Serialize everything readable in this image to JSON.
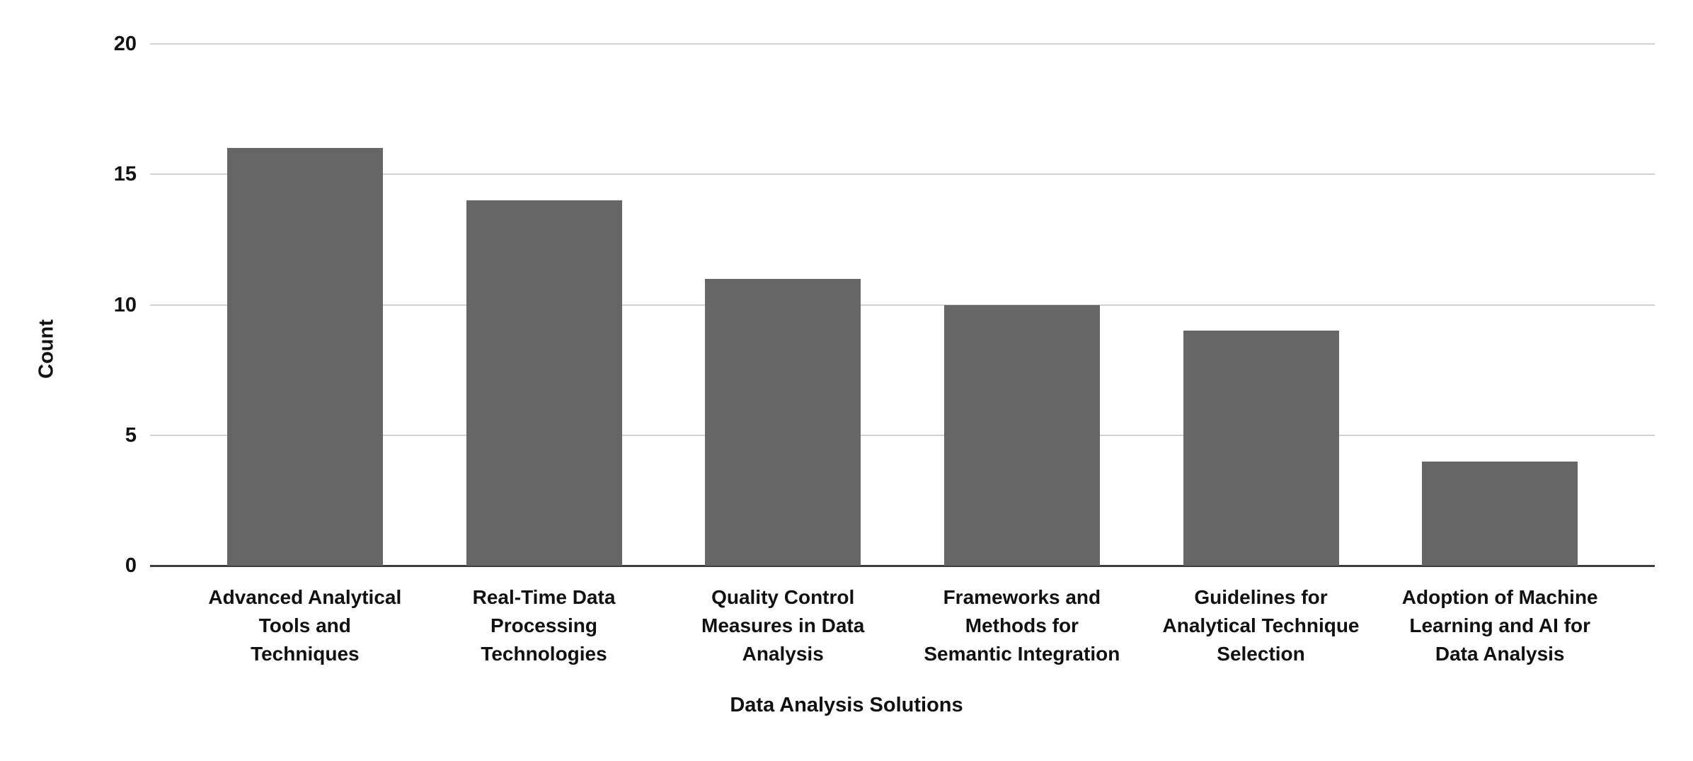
{
  "chart_data": {
    "type": "bar",
    "title": "",
    "xlabel": "Data Analysis Solutions",
    "ylabel": "Count",
    "ylim": [
      0,
      20
    ],
    "yticks": [
      0,
      5,
      10,
      15,
      20
    ],
    "grid": "horizontal",
    "legend": "none",
    "bar_color": "#666666",
    "categories": [
      {
        "label": "Advanced Analytical Tools and Techniques",
        "lines": [
          "Advanced Analytical",
          "Tools and",
          "Techniques"
        ]
      },
      {
        "label": "Real-Time Data Processing Technologies",
        "lines": [
          "Real-Time Data",
          "Processing",
          "Technologies"
        ]
      },
      {
        "label": "Quality Control Measures in Data Analysis",
        "lines": [
          "Quality Control",
          "Measures in Data",
          "Analysis"
        ]
      },
      {
        "label": "Frameworks and Methods for Semantic Integration",
        "lines": [
          "Frameworks and",
          "Methods for",
          "Semantic Integration"
        ]
      },
      {
        "label": "Guidelines for Analytical Technique Selection",
        "lines": [
          "Guidelines for",
          "Analytical Technique",
          "Selection"
        ]
      },
      {
        "label": "Adoption of Machine Learning and AI for Data Analysis",
        "lines": [
          "Adoption of Machine",
          "Learning and AI for",
          "Data Analysis"
        ]
      }
    ],
    "values": [
      16,
      14,
      11,
      10,
      9,
      4
    ]
  },
  "colors": {
    "background": "#ffffff",
    "bar": "#666666",
    "gridline": "#d2d2d2",
    "axis_line": "#3d3d3d",
    "text": "#111111"
  }
}
